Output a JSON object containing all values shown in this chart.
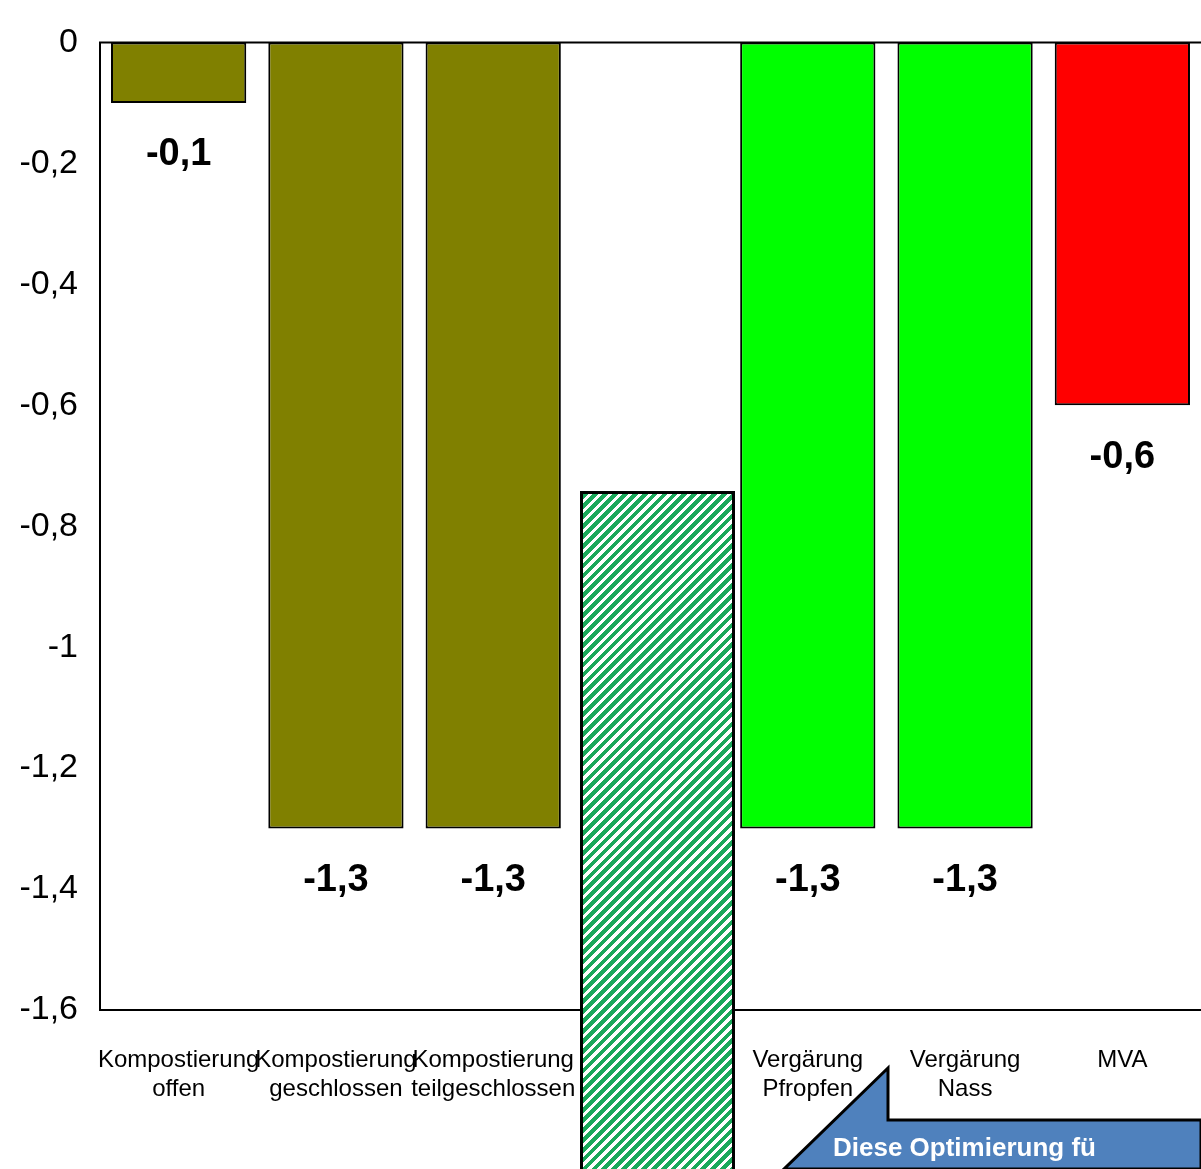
{
  "chart_data": {
    "type": "bar",
    "categories": [
      [
        "Kompostierung",
        "offen"
      ],
      [
        "Kompostierung",
        "geschlossen"
      ],
      [
        "Kompostierung",
        "teilgeschlossen"
      ],
      null,
      [
        "Vergärung",
        "Pfropfen"
      ],
      [
        "Vergärung",
        "Nass"
      ],
      [
        "MVA"
      ]
    ],
    "values": [
      -0.1,
      -1.3,
      -1.3,
      null,
      -1.3,
      -1.3,
      -0.6
    ],
    "value_labels": [
      "-0,1",
      "-1,3",
      "-1,3",
      null,
      "-1,3",
      "-1,3",
      "-0,6"
    ],
    "colors": [
      "#808000",
      "#808000",
      "#808000",
      "#00ff00",
      "#00ff00",
      "#00ff00",
      "#ff0000"
    ],
    "ylim": [
      -1.6,
      0
    ],
    "yticks": [
      {
        "value": -1.6,
        "label": "-1,6"
      },
      {
        "value": -1.4,
        "label": "-1,4"
      },
      {
        "value": -1.2,
        "label": "-1,2"
      },
      -1,
      {
        "value": -0.8,
        "label": "-0,8"
      },
      {
        "value": -0.6,
        "label": "-0,6"
      },
      {
        "value": -0.4,
        "label": "-0,4"
      },
      {
        "value": -0.2,
        "label": "-0,2"
      },
      0
    ],
    "grid": false,
    "legend": false,
    "annotations": [
      "Diese Optimierung fü"
    ]
  }
}
